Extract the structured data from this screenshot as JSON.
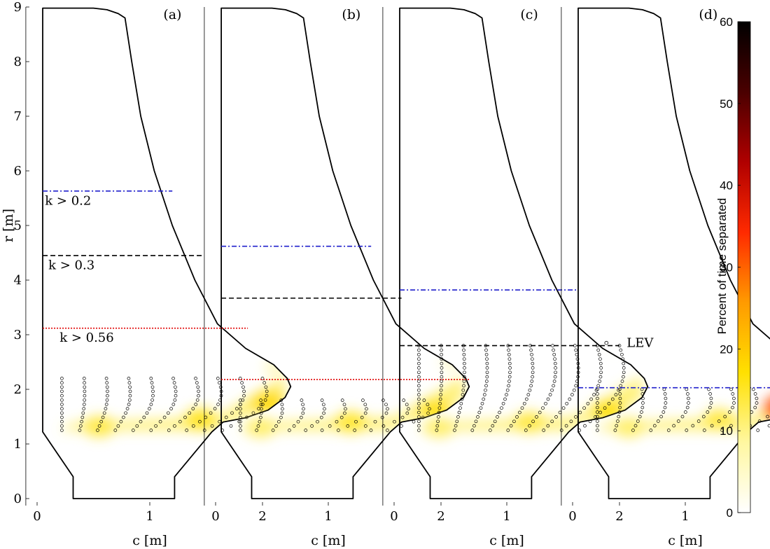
{
  "chart_data": {
    "type": "heatmap",
    "colorbar": {
      "label": "Percent of time separated",
      "ticks": [
        0,
        10,
        20,
        30,
        40,
        50,
        60
      ],
      "range": [
        0,
        60
      ],
      "colormap": [
        "#ffffff",
        "#fff7a0",
        "#ffe000",
        "#ff9a00",
        "#ff2a00",
        "#b00000",
        "#4a0000",
        "#000000"
      ]
    },
    "colors": {
      "k_gt_0_2": "#1f1fcc",
      "k_gt_0_3": "#000000",
      "k_gt_0_56": "#e00000",
      "blade_outline": "#000000"
    },
    "blade_outline": [
      [
        0.05,
        8.98
      ],
      [
        0.2,
        8.98
      ],
      [
        0.5,
        8.98
      ],
      [
        0.62,
        8.95
      ],
      [
        0.72,
        8.88
      ],
      [
        0.78,
        8.8
      ],
      [
        0.84,
        8.0
      ],
      [
        0.92,
        7.0
      ],
      [
        1.04,
        6.0
      ],
      [
        1.2,
        5.0
      ],
      [
        1.4,
        4.0
      ],
      [
        1.6,
        3.2
      ],
      [
        1.85,
        2.75
      ],
      [
        2.1,
        2.45
      ],
      [
        2.22,
        2.2
      ],
      [
        2.25,
        2.05
      ],
      [
        2.2,
        1.85
      ],
      [
        2.05,
        1.62
      ],
      [
        1.85,
        1.48
      ],
      [
        1.65,
        1.4
      ],
      [
        1.55,
        1.22
      ],
      [
        1.22,
        0.4
      ],
      [
        1.22,
        0.0
      ],
      [
        0.32,
        0.0
      ],
      [
        0.32,
        0.4
      ],
      [
        0.05,
        1.22
      ],
      [
        0.05,
        8.98
      ]
    ],
    "panels": [
      {
        "label": "(a)",
        "threshold_lines": [
          {
            "k": 0.2,
            "r": 5.63,
            "c_end": 1.2
          },
          {
            "k": 0.3,
            "r": 4.45,
            "c_end": 1.48
          },
          {
            "k": 0.56,
            "r": 3.12,
            "c_end": 1.87
          }
        ],
        "lev_grid": {
          "c_start": 0.22,
          "c_end": 2.0,
          "r_min": 1.25,
          "r_max": 2.2,
          "cols": 10,
          "rows": 13
        },
        "hot_spots": [
          {
            "c": 2.05,
            "r": 1.75,
            "value": 18
          },
          {
            "c": 1.45,
            "r": 1.45,
            "value": 16
          },
          {
            "c": 0.55,
            "r": 1.32,
            "value": 14
          },
          {
            "c": 2.12,
            "r": 2.4,
            "value": 6
          }
        ]
      },
      {
        "label": "(b)",
        "threshold_lines": [
          {
            "k": 0.2,
            "r": 4.62,
            "c_end": 1.38
          },
          {
            "k": 0.3,
            "r": 3.67,
            "c_end": 1.65
          },
          {
            "k": 0.56,
            "r": 2.18,
            "c_end": 2.25
          }
        ],
        "lev_grid": {
          "c_start": 0.22,
          "c_end": 1.85,
          "r_min": 1.25,
          "r_max": 1.8,
          "cols": 10,
          "rows": 8
        },
        "hot_spots": [
          {
            "c": 1.95,
            "r": 1.6,
            "value": 17
          },
          {
            "c": 1.2,
            "r": 1.4,
            "value": 15
          },
          {
            "c": 0.4,
            "r": 1.3,
            "value": 12
          },
          {
            "c": 2.1,
            "r": 2.5,
            "value": 5
          }
        ]
      },
      {
        "label": "(c)",
        "threshold_lines": [
          {
            "k": 0.2,
            "r": 3.82,
            "c_end": 1.62
          },
          {
            "k": 0.3,
            "r": 2.8,
            "c_end": 2.0
          }
        ],
        "lev_grid": {
          "c_start": 0.22,
          "c_end": 2.0,
          "r_min": 1.25,
          "r_max": 2.8,
          "cols": 10,
          "rows": 20
        },
        "hot_spots": [
          {
            "c": 1.9,
            "r": 1.6,
            "value": 17
          },
          {
            "c": 1.2,
            "r": 1.4,
            "value": 14
          },
          {
            "c": 0.4,
            "r": 1.3,
            "value": 12
          },
          {
            "c": 1.6,
            "r": 4.1,
            "value": 4
          },
          {
            "c": 2.0,
            "r": 2.9,
            "value": 5
          }
        ]
      },
      {
        "label": "(d)",
        "threshold_lines": [
          {
            "k": 0.2,
            "r": 2.03,
            "c_end": 2.25
          }
        ],
        "lev_grid": {
          "c_start": 0.22,
          "c_end": 2.0,
          "r_min": 1.25,
          "r_max": 2.0,
          "cols": 10,
          "rows": 10
        },
        "legend": {
          "marker": "circle",
          "label": "LEV"
        },
        "hot_spots": [
          {
            "c": 1.9,
            "r": 1.65,
            "value": 32
          },
          {
            "c": 2.05,
            "r": 1.85,
            "value": 22
          },
          {
            "c": 1.3,
            "r": 1.45,
            "value": 14
          },
          {
            "c": 0.5,
            "r": 1.3,
            "value": 12
          },
          {
            "c": 2.05,
            "r": 2.6,
            "value": 10
          },
          {
            "c": 1.55,
            "r": 4.2,
            "value": 6
          }
        ]
      }
    ],
    "annotations": [
      "k > 0.2",
      "k > 0.3",
      "k > 0.56"
    ],
    "xlabel": "c [m]",
    "ylabel": "r [m]",
    "xticks": [
      0,
      1,
      2
    ],
    "yticks": [
      0,
      1,
      2,
      3,
      4,
      5,
      6,
      7,
      8,
      9
    ],
    "xlim": [
      -0.1,
      2.4
    ],
    "ylim": [
      -0.1,
      9.0
    ]
  }
}
